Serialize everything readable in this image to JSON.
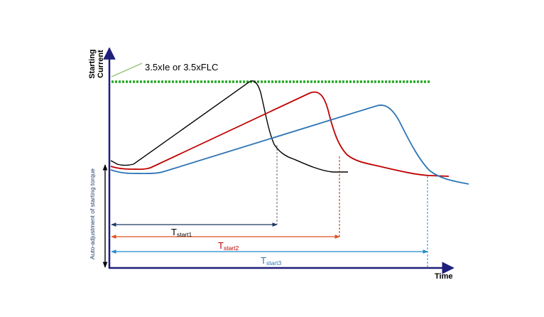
{
  "chart_data": {
    "type": "line",
    "y_axis_label_line1": "Starting",
    "y_axis_label_line2": "Current",
    "x_axis_label": "Time",
    "limit_label": "3.5xIe or 3.5xFLC",
    "side_label": "Auto-adjustment of starting torque",
    "series": [
      {
        "id": "start1",
        "color": "#000000",
        "t_main": "T",
        "t_sub": "start1"
      },
      {
        "id": "start2",
        "color": "#c00000",
        "t_main": "T",
        "t_sub": "start2"
      },
      {
        "id": "start3",
        "color": "#2e75b6",
        "t_main": "T",
        "t_sub": "start3"
      }
    ],
    "limit_color": "#22aa22",
    "axis_color": "#1f1f7a"
  }
}
